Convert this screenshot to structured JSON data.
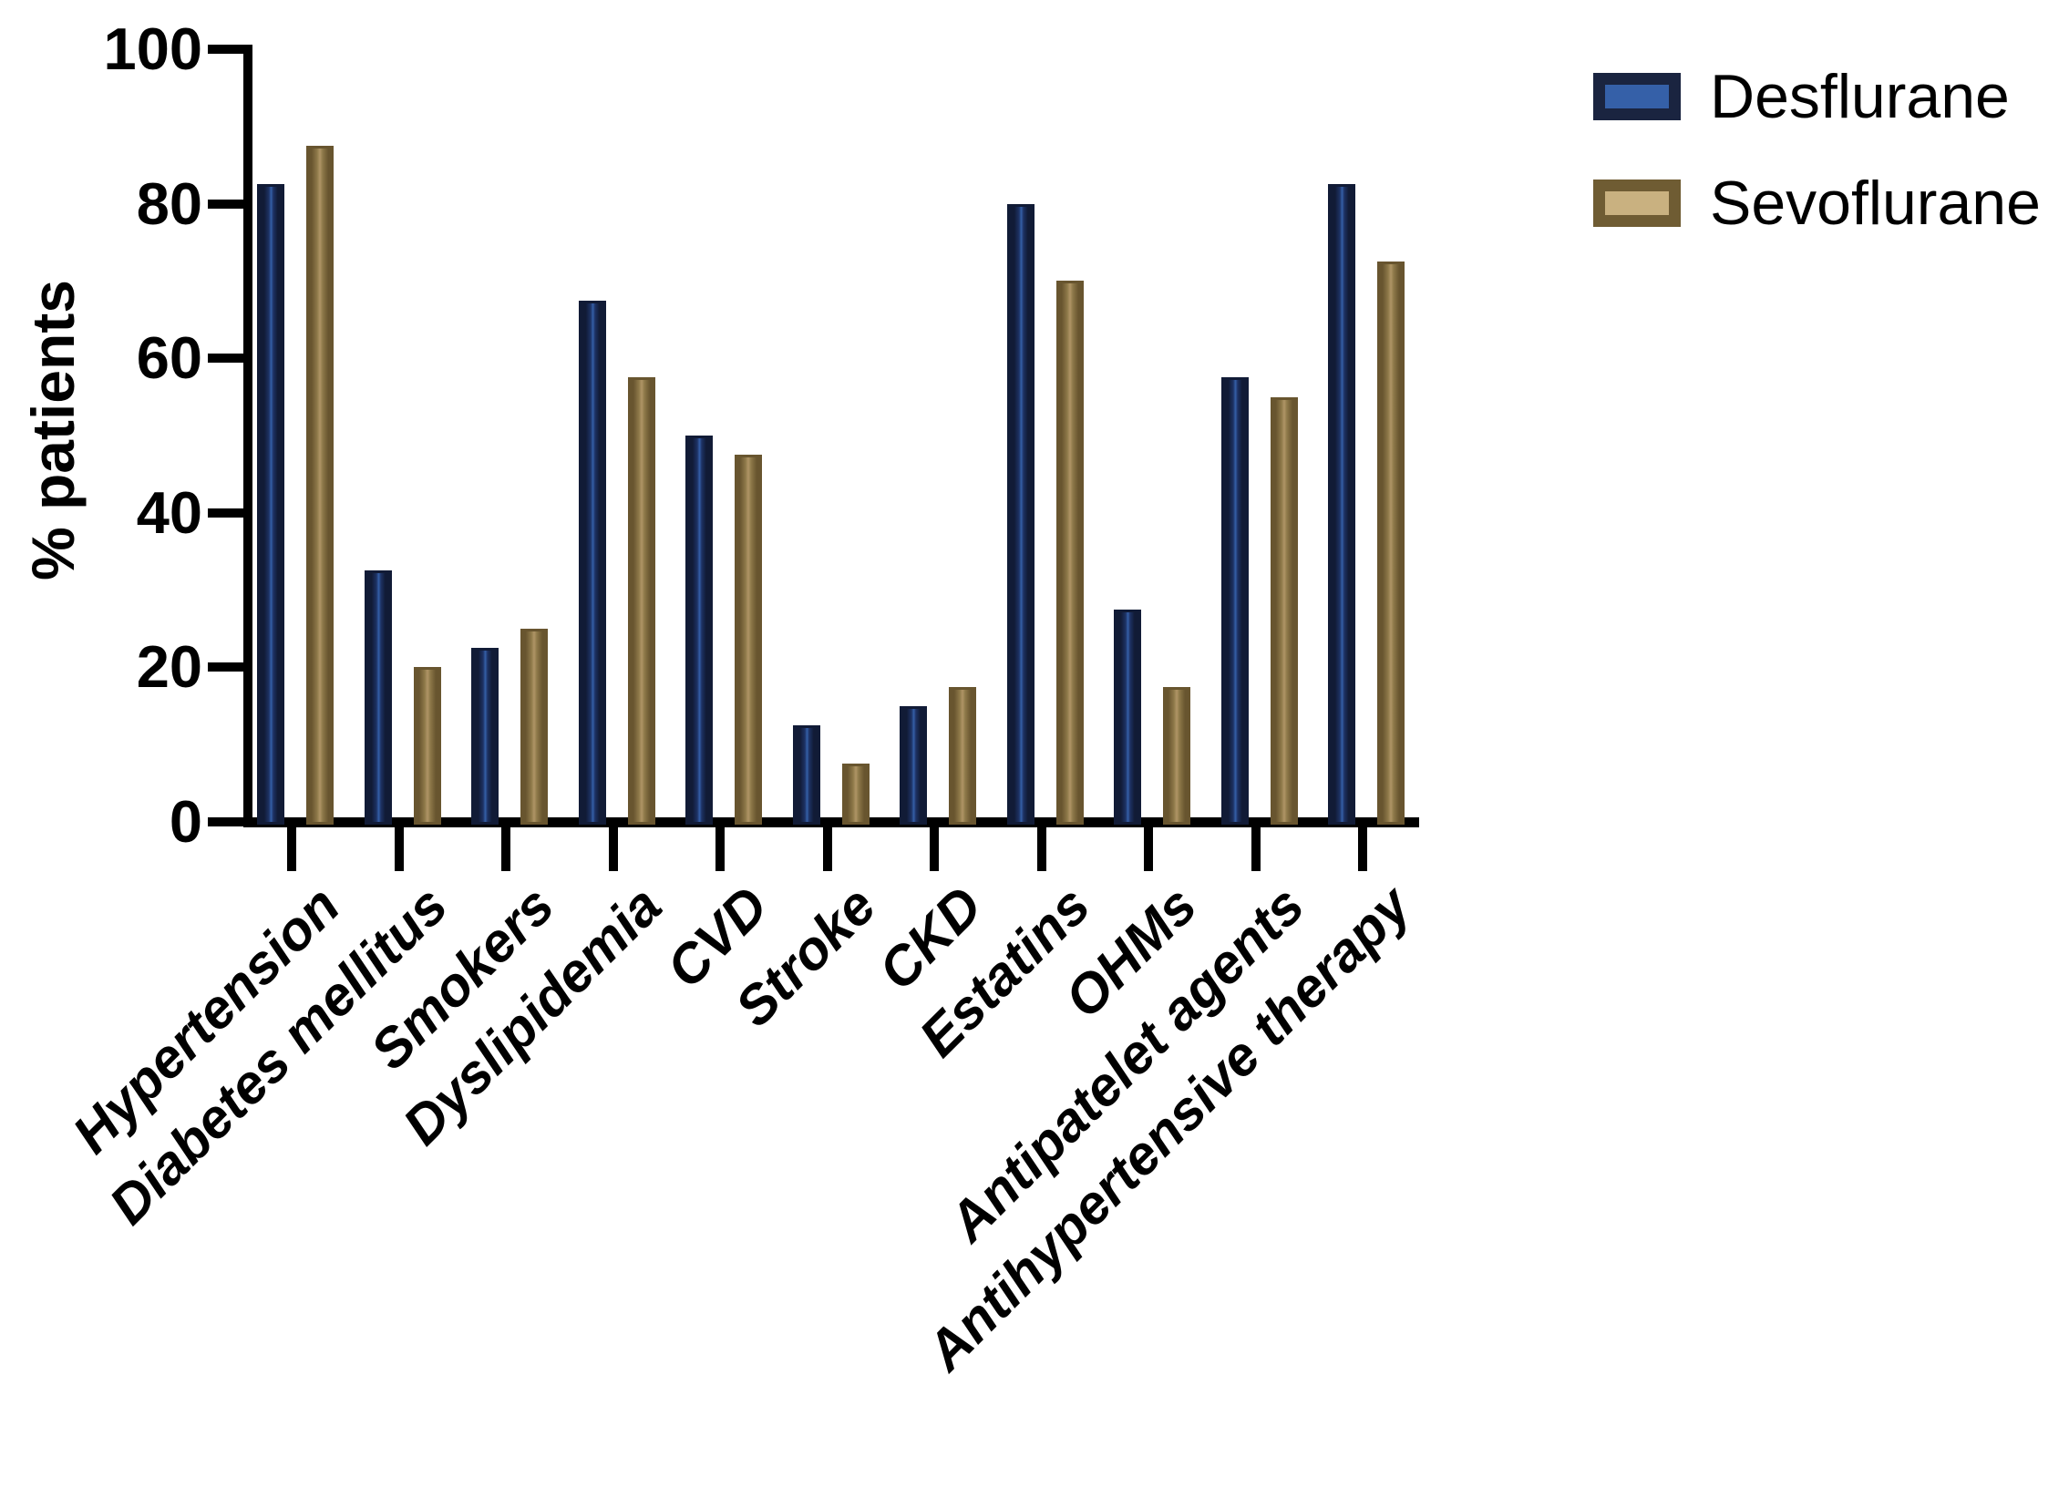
{
  "chart_data": {
    "type": "bar",
    "title": "",
    "ylabel": "% patients",
    "xlabel": "",
    "ylim": [
      0,
      100
    ],
    "yticks": [
      0,
      20,
      40,
      60,
      80,
      100
    ],
    "grid": false,
    "legend_position": "top-right",
    "categories": [
      "Hypertension",
      "Diabetes mellitus",
      "Smokers",
      "Dyslipidemia",
      "CVD",
      "Stroke",
      "CKD",
      "Estatins",
      "OHMs",
      "Antipatelet agents",
      "Antihypertensive therapy"
    ],
    "series": [
      {
        "name": "Desflurane",
        "values": [
          82.5,
          32.5,
          22.5,
          67.5,
          50,
          12.5,
          15,
          80,
          27.5,
          57.5,
          82.5
        ]
      },
      {
        "name": "Sevoflurane",
        "values": [
          87.5,
          20,
          25,
          57.5,
          47.5,
          7.5,
          17.5,
          70,
          17.5,
          55,
          72.5
        ]
      }
    ]
  },
  "colors": {
    "background": "#ffffff",
    "axis": "#000000",
    "text": "#000000",
    "desflurane_edge": "#111b36",
    "desflurane_mid": "#1d3264",
    "desflurane_highlight": "#3560a8",
    "sevoflurane_edge": "#68552f",
    "sevoflurane_mid": "#8f7a4a",
    "sevoflurane_highlight": "#b09566"
  },
  "legend": {
    "items": [
      {
        "label": "Desflurane",
        "swatch_outer": "#1a2440",
        "swatch_inner": "#3560a8"
      },
      {
        "label": "Sevoflurane",
        "swatch_outer": "#6f5c33",
        "swatch_inner": "#c9b180"
      }
    ]
  }
}
